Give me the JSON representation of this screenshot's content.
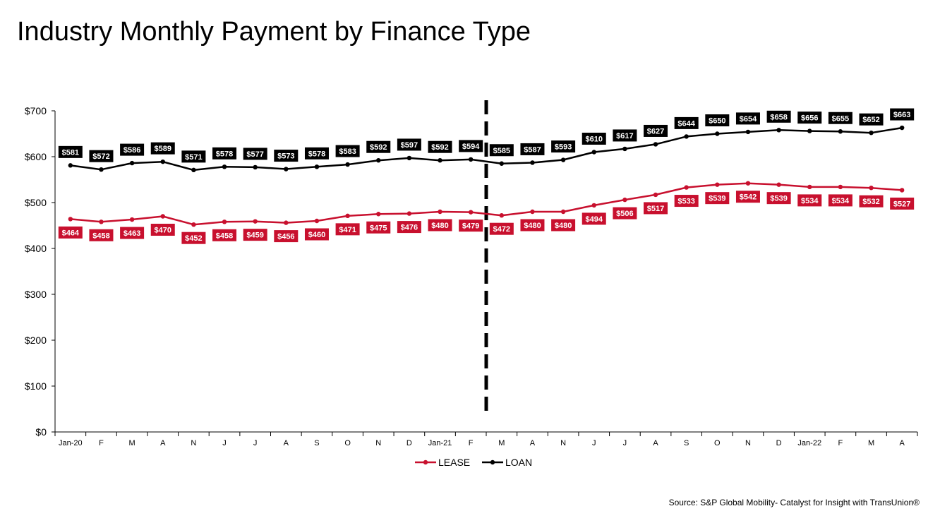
{
  "title": "Industry Monthly Payment by Finance Type",
  "source": "Source: S&P Global Mobility- Catalyst for Insight with TransUnion®",
  "chart_data": {
    "type": "line",
    "categories": [
      "Jan-20",
      "F",
      "M",
      "A",
      "N",
      "J",
      "J",
      "A",
      "S",
      "O",
      "N",
      "D",
      "Jan-21",
      "F",
      "M",
      "A",
      "N",
      "J",
      "J",
      "A",
      "S",
      "O",
      "N",
      "D",
      "Jan-22",
      "F",
      "M",
      "A"
    ],
    "series": [
      {
        "name": "LEASE",
        "color": "#c8102e",
        "values": [
          464,
          458,
          463,
          470,
          452,
          458,
          459,
          456,
          460,
          471,
          475,
          476,
          480,
          479,
          472,
          480,
          480,
          494,
          506,
          517,
          533,
          539,
          542,
          539,
          534,
          534,
          532,
          527
        ]
      },
      {
        "name": "LOAN",
        "color": "#000000",
        "values": [
          581,
          572,
          586,
          589,
          571,
          578,
          577,
          573,
          578,
          583,
          592,
          597,
          592,
          594,
          585,
          587,
          593,
          610,
          617,
          627,
          644,
          650,
          654,
          658,
          656,
          655,
          652,
          663
        ]
      }
    ],
    "yticks": [
      "$0",
      "$100",
      "$200",
      "$300",
      "$400",
      "$500",
      "$600",
      "$700"
    ],
    "ylim": [
      0,
      700
    ],
    "data_label_prefix": "$",
    "divider_after_category": 13,
    "legend_position": "bottom-center",
    "grid": false
  }
}
